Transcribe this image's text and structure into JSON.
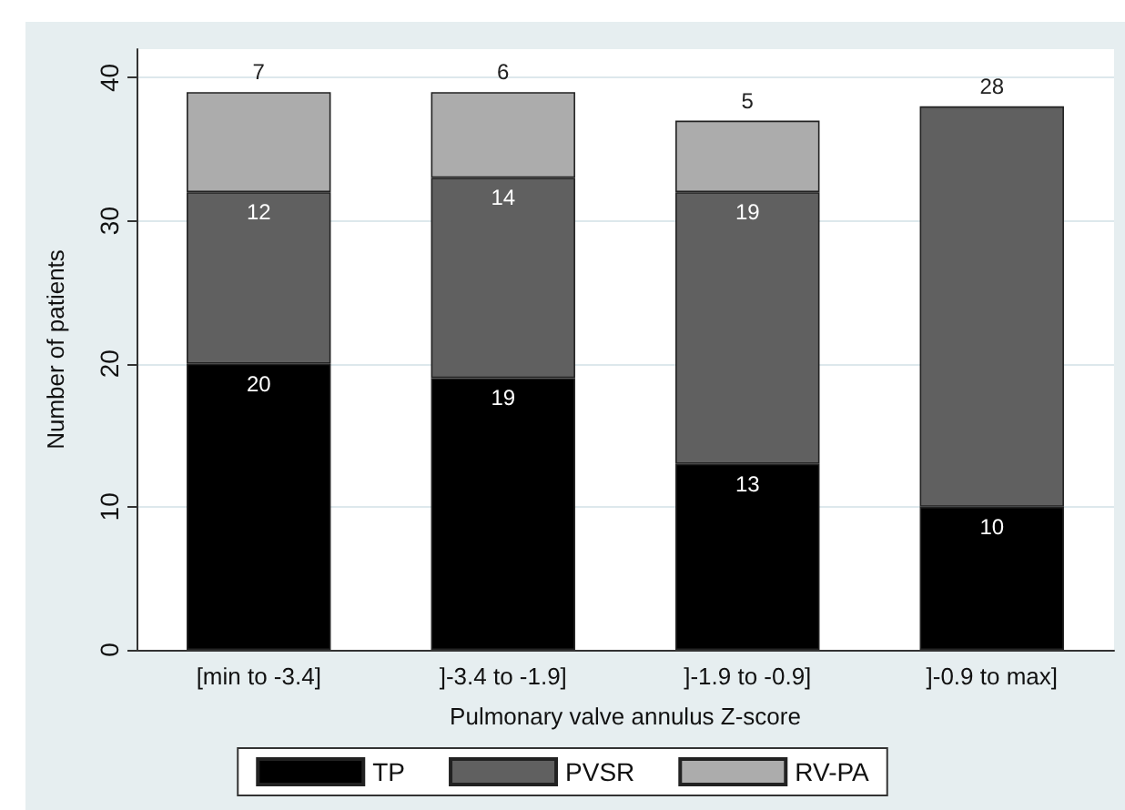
{
  "chart_data": {
    "type": "bar",
    "stacked": true,
    "xlabel": "Pulmonary valve annulus Z-score",
    "ylabel": "Number of patients",
    "categories": [
      "[min to -3.4]",
      "]-3.4 to -1.9]",
      "]-1.9 to -0.9]",
      "]-0.9 to max]"
    ],
    "series": [
      {
        "name": "TP",
        "color": "#000000",
        "values": [
          20,
          19,
          13,
          10
        ]
      },
      {
        "name": "PVSR",
        "color": "#606060",
        "values": [
          12,
          14,
          19,
          28
        ]
      },
      {
        "name": "RV-PA",
        "color": "#acacac",
        "values": [
          7,
          6,
          5,
          null
        ]
      }
    ],
    "ylim": [
      0,
      42
    ],
    "yticks": [
      0,
      10,
      20,
      30,
      40
    ],
    "grid": "y",
    "legend": "bottom",
    "data_labels": true
  }
}
